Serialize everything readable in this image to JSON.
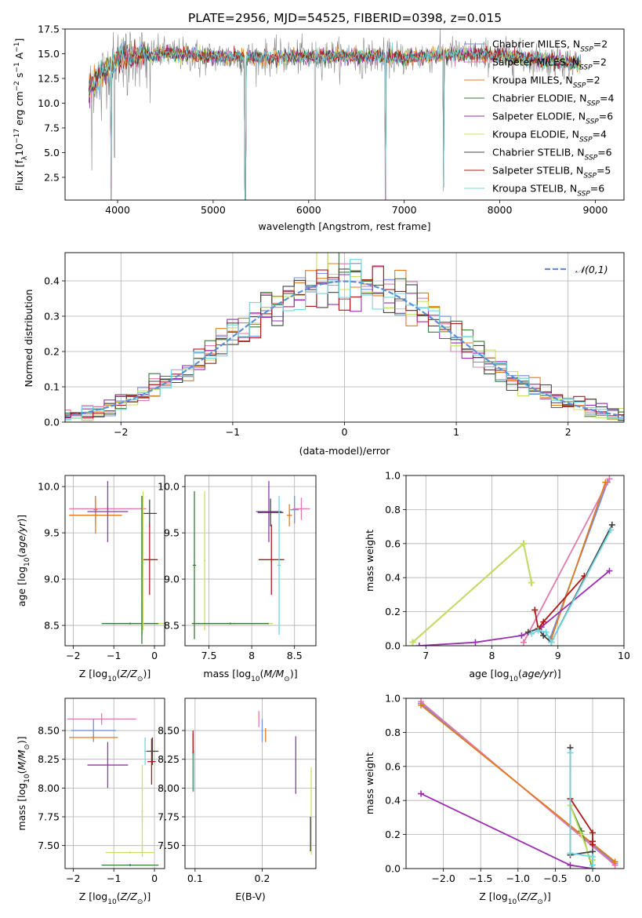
{
  "palette": {
    "Chabrier MILES": "#6f8fe0",
    "Salpeter MILES": "#e07ab0",
    "Kroupa MILES": "#e07b1f",
    "Chabrier ELODIE": "#3a7a3a",
    "Salpeter ELODIE": "#9a2fb0",
    "Kroupa ELODIE": "#c8e060",
    "Chabrier STELIB": "#444444",
    "Salpeter STELIB": "#b01818",
    "Kroupa STELIB": "#70d8e0"
  },
  "chart_data": [
    {
      "type": "line",
      "title": "PLATE=2956, MJD=54525, FIBERID=0398, z=0.015",
      "xlabel": "wavelength [Angstrom, rest frame]",
      "ylabel": "Flux [fλ10⁻¹⁷ erg cm⁻² s⁻¹ A⁻¹]",
      "xlim": [
        3450,
        9300
      ],
      "ylim": [
        0.2,
        17.5
      ],
      "xticks": [
        4000,
        5000,
        6000,
        7000,
        8000,
        9000
      ],
      "yticks": [
        2.5,
        5.0,
        7.5,
        10.0,
        12.5,
        15.0,
        17.5
      ],
      "ytick_labels": [
        "2.5",
        "5.0",
        "7.5",
        "10.0",
        "12.5",
        "15.0",
        "17.5"
      ],
      "legend": [
        {
          "name": "Chabrier MILES",
          "nssp": "2"
        },
        {
          "name": "Salpeter MILES",
          "nssp": "2"
        },
        {
          "name": "Kroupa MILES",
          "nssp": "2"
        },
        {
          "name": "Chabrier ELODIE",
          "nssp": "4"
        },
        {
          "name": "Salpeter ELODIE",
          "nssp": "6"
        },
        {
          "name": "Kroupa ELODIE",
          "nssp": "4"
        },
        {
          "name": "Chabrier STELIB",
          "nssp": "6"
        },
        {
          "name": "Salpeter STELIB",
          "nssp": "5"
        },
        {
          "name": "Kroupa STELIB",
          "nssp": "6"
        }
      ],
      "legend_placement": "upper-right",
      "data_color": "#888888",
      "continuum": [
        [
          3700,
          11.5
        ],
        [
          3800,
          12.8
        ],
        [
          3900,
          13.5
        ],
        [
          4000,
          14.6
        ],
        [
          4200,
          14.8
        ],
        [
          4500,
          15.0
        ],
        [
          5000,
          14.7
        ],
        [
          5500,
          14.6
        ],
        [
          6000,
          14.7
        ],
        [
          6500,
          14.8
        ],
        [
          7000,
          14.6
        ],
        [
          7500,
          15.0
        ],
        [
          8000,
          14.8
        ],
        [
          8500,
          14.3
        ],
        [
          8850,
          14.0
        ]
      ],
      "dips": [
        {
          "x": 3730,
          "y": 3.2
        },
        {
          "x": 3830,
          "y": 8.2
        },
        {
          "x": 3933,
          "y": 0.2
        },
        {
          "x": 3968,
          "y": 4.5
        },
        {
          "x": 4102,
          "y": 10.8
        },
        {
          "x": 4305,
          "y": 11.5
        },
        {
          "x": 4340,
          "y": 10.0
        },
        {
          "x": 4861,
          "y": 12.6
        },
        {
          "x": 5337,
          "y": 0.2
        },
        {
          "x": 6067,
          "y": 0.2
        },
        {
          "x": 6563,
          "y": 12.5
        },
        {
          "x": 6803,
          "y": 0.2
        },
        {
          "x": 7410,
          "y": 1.1
        }
      ],
      "model_dips": [
        {
          "x": 3933,
          "y": 1.5
        },
        {
          "x": 5337,
          "y": 0.2
        },
        {
          "x": 6803,
          "y": 0.2
        },
        {
          "x": 7410,
          "y": 1.5
        }
      ]
    },
    {
      "type": "step",
      "xlabel": "(data-model)/error",
      "ylabel": "Normed distribution",
      "xlim": [
        -2.5,
        2.5
      ],
      "ylim": [
        0.0,
        0.48
      ],
      "xticks": [
        -2,
        -1,
        0,
        1,
        2
      ],
      "yticks": [
        0.0,
        0.1,
        0.2,
        0.3,
        0.4
      ],
      "ytick_labels": [
        "0.0",
        "0.1",
        "0.2",
        "0.3",
        "0.4"
      ],
      "bin_width": 0.1,
      "legend": [
        "𝒩(0,1)"
      ],
      "legend_placement": "upper-right",
      "reference": {
        "name": "𝒩(0,1)",
        "mean": 0.0,
        "sigma": 1.0,
        "color": "#5b8fd9"
      }
    },
    {
      "type": "scatter",
      "xlabel": "Z [log₁₀(Z/Z⊙)]",
      "ylabel": "age [log₁₀(age/yr)]",
      "xlim": [
        -2.2,
        0.25
      ],
      "ylim": [
        8.28,
        10.12
      ],
      "xticks": [
        -2,
        -1,
        0
      ],
      "yticks": [
        8.5,
        9.0,
        9.5,
        10.0
      ],
      "ytick_labels": [
        "8.5",
        "9.0",
        "9.5",
        "10.0"
      ],
      "points": [
        {
          "series": "Chabrier MILES",
          "x": -1.45,
          "y": 9.75,
          "xerr": 0.05,
          "yerr": 0.15
        },
        {
          "series": "Salpeter MILES",
          "x": -1.15,
          "y": 9.76,
          "xerr": 0.95,
          "yerr": 0.03
        },
        {
          "series": "Kroupa MILES",
          "x": -1.45,
          "y": 9.69,
          "xerr": 0.65,
          "yerr": 0.2
        },
        {
          "series": "Salpeter ELODIE",
          "x": -1.15,
          "y": 9.73,
          "xerr": 0.5,
          "yerr": 0.33
        },
        {
          "series": "Chabrier STELIB",
          "x": -0.12,
          "y": 9.71,
          "xerr": 0.18,
          "yerr": 0.15
        },
        {
          "series": "Kroupa ELODIE",
          "x": -0.3,
          "y": 8.52,
          "xerr": 0.8,
          "yerr": 0.01
        },
        {
          "series": "Chabrier ELODIE",
          "x": -0.6,
          "y": 8.52,
          "xerr": 0.7,
          "yerr": 0.01
        },
        {
          "series": "Salpeter STELIB",
          "x": -0.12,
          "y": 9.21,
          "xerr": 0.2,
          "yerr": 0.38
        },
        {
          "series": "Kroupa STELIB",
          "x": -0.3,
          "y": 9.15,
          "xerr": 0.02,
          "yerr": 0.75
        },
        {
          "series": "Kroupa ELODIE",
          "x": -0.28,
          "y": 9.2,
          "xerr": 0.01,
          "yerr": 0.75
        },
        {
          "series": "Chabrier ELODIE",
          "x": -0.31,
          "y": 9.1,
          "xerr": 0.01,
          "yerr": 0.8
        }
      ]
    },
    {
      "type": "scatter",
      "xlabel": "mass [log₁₀(M/M⊙)]",
      "ylabel": "",
      "xlim": [
        7.22,
        8.75
      ],
      "ylim": [
        8.28,
        10.12
      ],
      "xticks": [
        7.5,
        8.0,
        8.5
      ],
      "yticks": [
        8.5,
        9.0,
        9.5,
        10.0
      ],
      "ytick_labels": [
        "8.5",
        "9.0",
        "9.5",
        "10.0"
      ],
      "points": [
        {
          "series": "Chabrier ELODIE",
          "x": 7.33,
          "y": 9.15,
          "xerr": 0.02,
          "yerr": 0.8
        },
        {
          "series": "Kroupa ELODIE",
          "x": 7.45,
          "y": 9.2,
          "xerr": 0.01,
          "yerr": 0.75
        },
        {
          "series": "Kroupa ELODIE",
          "x": 7.8,
          "y": 8.52,
          "xerr": 0.45,
          "yerr": 0.01
        },
        {
          "series": "Chabrier ELODIE",
          "x": 7.75,
          "y": 8.52,
          "xerr": 0.45,
          "yerr": 0.01
        },
        {
          "series": "Salpeter ELODIE",
          "x": 8.2,
          "y": 9.73,
          "xerr": 0.15,
          "yerr": 0.33
        },
        {
          "series": "Chabrier STELIB",
          "x": 8.22,
          "y": 9.72,
          "xerr": 0.15,
          "yerr": 0.15
        },
        {
          "series": "Salpeter STELIB",
          "x": 8.23,
          "y": 9.21,
          "xerr": 0.15,
          "yerr": 0.38
        },
        {
          "series": "Kroupa STELIB",
          "x": 8.32,
          "y": 9.15,
          "xerr": 0.02,
          "yerr": 0.75
        },
        {
          "series": "Chabrier MILES",
          "x": 8.5,
          "y": 9.75,
          "xerr": 0.05,
          "yerr": 0.15
        },
        {
          "series": "Salpeter MILES",
          "x": 8.58,
          "y": 9.76,
          "xerr": 0.1,
          "yerr": 0.12
        },
        {
          "series": "Kroupa MILES",
          "x": 8.44,
          "y": 9.69,
          "xerr": 0.03,
          "yerr": 0.12
        }
      ]
    },
    {
      "type": "line",
      "xlabel": "age [log₁₀(age/yr)]",
      "ylabel": "mass weight",
      "xlim": [
        6.7,
        10.0
      ],
      "ylim": [
        0.0,
        1.0
      ],
      "xticks": [
        7,
        8,
        9,
        10
      ],
      "yticks": [
        0.0,
        0.2,
        0.4,
        0.6,
        0.8,
        1.0
      ],
      "ytick_labels": [
        "0.0",
        "0.2",
        "0.4",
        "0.6",
        "0.8",
        "1.0"
      ],
      "series": [
        {
          "name": "Chabrier MILES",
          "points": [
            [
              8.88,
              0.04
            ],
            [
              9.75,
              0.96
            ]
          ]
        },
        {
          "name": "Salpeter MILES",
          "points": [
            [
              8.48,
              0.02
            ],
            [
              9.78,
              0.98
            ]
          ]
        },
        {
          "name": "Kroupa MILES",
          "points": [
            [
              8.9,
              0.04
            ],
            [
              9.72,
              0.96
            ]
          ]
        },
        {
          "name": "Chabrier ELODIE",
          "points": [
            [
              6.8,
              0.02
            ],
            [
              8.48,
              0.6
            ],
            [
              8.6,
              0.37
            ]
          ]
        },
        {
          "name": "Salpeter ELODIE",
          "points": [
            [
              6.9,
              0.0
            ],
            [
              7.75,
              0.02
            ],
            [
              8.45,
              0.06
            ],
            [
              8.75,
              0.11
            ],
            [
              9.78,
              0.44
            ]
          ]
        },
        {
          "name": "Kroupa ELODIE",
          "points": [
            [
              6.8,
              0.02
            ],
            [
              8.48,
              0.6
            ],
            [
              8.6,
              0.37
            ]
          ]
        },
        {
          "name": "Chabrier STELIB",
          "points": [
            [
              8.55,
              0.08
            ],
            [
              8.7,
              0.1
            ],
            [
              8.78,
              0.06
            ],
            [
              8.9,
              0.02
            ],
            [
              9.82,
              0.71
            ]
          ]
        },
        {
          "name": "Salpeter STELIB",
          "points": [
            [
              8.65,
              0.21
            ],
            [
              8.7,
              0.1
            ],
            [
              8.78,
              0.14
            ],
            [
              9.4,
              0.41
            ]
          ]
        },
        {
          "name": "Kroupa STELIB",
          "points": [
            [
              8.6,
              0.07
            ],
            [
              8.7,
              0.09
            ],
            [
              8.82,
              0.08
            ],
            [
              8.9,
              0.02
            ],
            [
              9.8,
              0.68
            ]
          ]
        }
      ]
    },
    {
      "type": "scatter",
      "xlabel": "Z [log₁₀(Z/Z⊙)]",
      "ylabel": "mass [log₁₀(M/M⊙)]",
      "xlim": [
        -2.2,
        0.25
      ],
      "ylim": [
        7.3,
        8.78
      ],
      "xticks": [
        -2,
        -1,
        0
      ],
      "yticks": [
        7.5,
        7.75,
        8.0,
        8.25,
        8.5
      ],
      "ytick_labels": [
        "7.50",
        "7.75",
        "8.00",
        "8.25",
        "8.50"
      ],
      "points": [
        {
          "series": "Salpeter MILES",
          "x": -1.3,
          "y": 8.6,
          "xerr": 0.85,
          "yerr": 0.05
        },
        {
          "series": "Chabrier MILES",
          "x": -1.5,
          "y": 8.5,
          "xerr": 0.55,
          "yerr": 0.1
        },
        {
          "series": "Kroupa MILES",
          "x": -1.5,
          "y": 8.44,
          "xerr": 0.6,
          "yerr": 0.02
        },
        {
          "series": "Salpeter ELODIE",
          "x": -1.15,
          "y": 8.2,
          "xerr": 0.5,
          "yerr": 0.2
        },
        {
          "series": "Chabrier STELIB",
          "x": -0.05,
          "y": 8.32,
          "xerr": 0.15,
          "yerr": 0.12
        },
        {
          "series": "Salpeter STELIB",
          "x": -0.07,
          "y": 8.23,
          "xerr": 0.1,
          "yerr": 0.2
        },
        {
          "series": "Kroupa STELIB",
          "x": -0.23,
          "y": 8.32,
          "xerr": 0.02,
          "yerr": 0.12
        },
        {
          "series": "Kroupa ELODIE",
          "x": -0.3,
          "y": 7.8,
          "xerr": 0.02,
          "yerr": 0.4
        },
        {
          "series": "Kroupa ELODIE",
          "x": -0.6,
          "y": 7.44,
          "xerr": 0.6,
          "yerr": 0.01
        },
        {
          "series": "Chabrier ELODIE",
          "x": -0.6,
          "y": 7.33,
          "xerr": 0.7,
          "yerr": 0.01
        }
      ]
    },
    {
      "type": "scatter",
      "xlabel": "E(B-V)",
      "ylabel": "",
      "xlim": [
        0.085,
        0.28
      ],
      "ylim": [
        7.3,
        8.78
      ],
      "xticks": [
        0.1,
        0.2
      ],
      "yticks": [
        7.5,
        7.75,
        8.0,
        8.25,
        8.5
      ],
      "ytick_labels": [
        "7.50",
        "7.75",
        "8.00",
        "8.25",
        "8.50"
      ],
      "points": [
        {
          "series": "Chabrier ELODIE",
          "x": 0.097,
          "y": 8.22,
          "xerr": 0.0,
          "yerr": 0.25
        },
        {
          "series": "Kroupa STELIB",
          "x": 0.098,
          "y": 8.15,
          "xerr": 0.0,
          "yerr": 0.18
        },
        {
          "series": "Salpeter STELIB",
          "x": 0.097,
          "y": 8.4,
          "xerr": 0.0,
          "yerr": 0.1
        },
        {
          "series": "Salpeter MILES",
          "x": 0.195,
          "y": 8.6,
          "xerr": 0.0,
          "yerr": 0.07
        },
        {
          "series": "Chabrier MILES",
          "x": 0.2,
          "y": 8.5,
          "xerr": 0.0,
          "yerr": 0.1
        },
        {
          "series": "Kroupa MILES",
          "x": 0.205,
          "y": 8.46,
          "xerr": 0.0,
          "yerr": 0.06
        },
        {
          "series": "Salpeter ELODIE",
          "x": 0.25,
          "y": 8.2,
          "xerr": 0.0,
          "yerr": 0.25
        },
        {
          "series": "Kroupa ELODIE",
          "x": 0.273,
          "y": 7.8,
          "xerr": 0.0,
          "yerr": 0.38
        },
        {
          "series": "Chabrier STELIB",
          "x": 0.272,
          "y": 7.6,
          "xerr": 0.0,
          "yerr": 0.15
        }
      ]
    },
    {
      "type": "line",
      "xlabel": "Z [log₁₀(Z/Z⊙)]",
      "ylabel": "mass weight",
      "xlim": [
        -2.5,
        0.42
      ],
      "ylim": [
        0.0,
        1.0
      ],
      "xticks": [
        -2.0,
        -1.5,
        -1.0,
        -0.5,
        0.0
      ],
      "xtick_labels": [
        "−2.0",
        "−1.5",
        "−1.0",
        "−0.5",
        "0.0"
      ],
      "yticks": [
        0.0,
        0.2,
        0.4,
        0.6,
        0.8,
        1.0
      ],
      "ytick_labels": [
        "0.0",
        "0.2",
        "0.4",
        "0.6",
        "0.8",
        "1.0"
      ],
      "series": [
        {
          "name": "Chabrier MILES",
          "points": [
            [
              -2.3,
              0.97
            ],
            [
              0.3,
              0.03
            ]
          ]
        },
        {
          "name": "Salpeter MILES",
          "points": [
            [
              -2.3,
              0.98
            ],
            [
              0.3,
              0.02
            ]
          ]
        },
        {
          "name": "Kroupa MILES",
          "points": [
            [
              -2.3,
              0.96
            ],
            [
              0.3,
              0.04
            ]
          ]
        },
        {
          "name": "Chabrier ELODIE",
          "points": [
            [
              -0.3,
              0.37
            ],
            [
              -0.15,
              0.22
            ],
            [
              0.0,
              0.0
            ],
            [
              0.0,
              0.05
            ]
          ]
        },
        {
          "name": "Salpeter ELODIE",
          "points": [
            [
              -2.3,
              0.44
            ],
            [
              -0.3,
              0.02
            ],
            [
              0.0,
              0.0
            ]
          ]
        },
        {
          "name": "Kroupa ELODIE",
          "points": [
            [
              -0.3,
              0.37
            ],
            [
              -0.15,
              0.2
            ],
            [
              0.0,
              0.02
            ],
            [
              0.0,
              0.05
            ]
          ]
        },
        {
          "name": "Chabrier STELIB",
          "points": [
            [
              -0.3,
              0.71
            ],
            [
              -0.3,
              0.08
            ],
            [
              0.0,
              0.1
            ],
            [
              0.0,
              0.02
            ]
          ]
        },
        {
          "name": "Salpeter STELIB",
          "points": [
            [
              -0.3,
              0.41
            ],
            [
              0.0,
              0.21
            ],
            [
              0.0,
              0.16
            ],
            [
              0.0,
              0.14
            ]
          ]
        },
        {
          "name": "Kroupa STELIB",
          "points": [
            [
              -0.3,
              0.68
            ],
            [
              -0.3,
              0.09
            ],
            [
              0.0,
              0.07
            ],
            [
              0.0,
              0.02
            ]
          ]
        }
      ]
    }
  ]
}
